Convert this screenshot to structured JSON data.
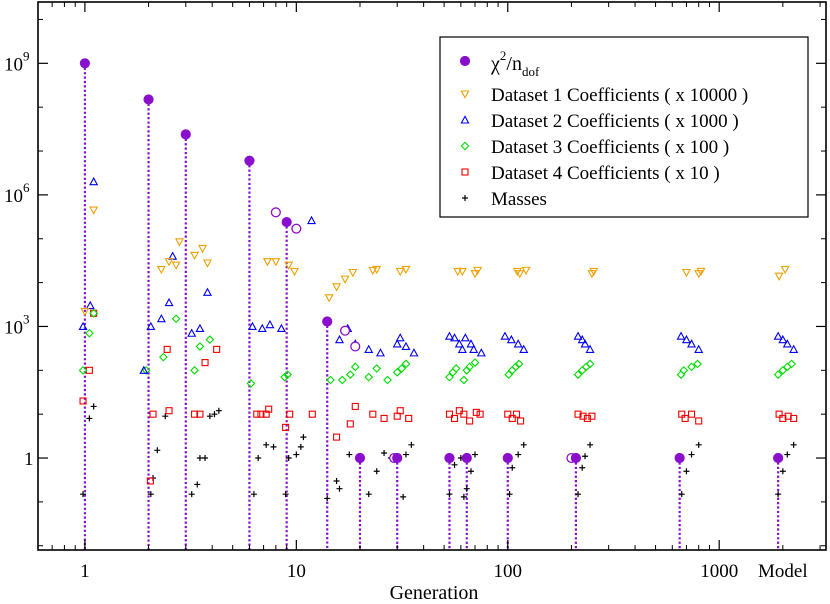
{
  "chart_data": {
    "type": "scatter",
    "title": "",
    "xlabel": "Generation",
    "ylabel": "",
    "x_scale": "log",
    "y_scale": "log",
    "xlim": [
      0.6,
      3200
    ],
    "ylim": [
      0.008,
      25000000000.0
    ],
    "x_ticks": [
      {
        "value": 1,
        "label": "1"
      },
      {
        "value": 10,
        "label": "10"
      },
      {
        "value": 100,
        "label": "100"
      },
      {
        "value": 1000,
        "label": "1000"
      },
      {
        "value": 2000,
        "label": "Model"
      }
    ],
    "y_ticks": [
      {
        "value": 1,
        "base": "1",
        "exp": ""
      },
      {
        "value": 1000,
        "base": "10",
        "exp": "3"
      },
      {
        "value": 1000000,
        "base": "10",
        "exp": "6"
      },
      {
        "value": 1000000000,
        "base": "10",
        "exp": "9"
      }
    ],
    "legend_position": "top-right",
    "legend": [
      {
        "key": "chi2",
        "label_main": "χ",
        "label_sup": "2",
        "label_mid": "/n",
        "label_sub": "dof"
      },
      {
        "key": "d1",
        "label": "Dataset 1 Coefficients ( x 10000 )"
      },
      {
        "key": "d2",
        "label": "Dataset 2 Coefficients ( x 1000 )"
      },
      {
        "key": "d3",
        "label": "Dataset 3 Coefficients ( x 100 )"
      },
      {
        "key": "d4",
        "label": "Dataset 4 Coefficients ( x 10 )"
      },
      {
        "key": "masses",
        "label": "Masses"
      }
    ],
    "colors": {
      "chi2": "#8a0fcc",
      "d1": "#f0a000",
      "d2": "#0000ee",
      "d3": "#00dd00",
      "d4": "#ee0000",
      "masses": "#000000",
      "drop_line": "#8a0fcc"
    },
    "generations": [
      1,
      2,
      3,
      6,
      9,
      14,
      20,
      30,
      53,
      64,
      100,
      210,
      650,
      1900
    ],
    "series": [
      {
        "name": "chi2_per_ndof",
        "key": "chi2",
        "marker": "filled-circle",
        "points": [
          [
            1,
            1000000000.0
          ],
          [
            2,
            150000000.0
          ],
          [
            3,
            24000000.0
          ],
          [
            6,
            6000000.0
          ],
          [
            9,
            240000.0
          ],
          [
            14,
            1300
          ],
          [
            20,
            1
          ],
          [
            30,
            1
          ],
          [
            53,
            1
          ],
          [
            64,
            1
          ],
          [
            100,
            1
          ],
          [
            210,
            1
          ],
          [
            650,
            1
          ],
          [
            1900,
            1
          ]
        ]
      },
      {
        "name": "chi2_per_ndof_open",
        "key": "chi2",
        "marker": "open-circle",
        "points": [
          [
            8,
            400000.0
          ],
          [
            10,
            170000.0
          ],
          [
            17,
            800
          ],
          [
            19,
            350
          ],
          [
            29,
            1
          ],
          [
            200,
            1
          ]
        ]
      },
      {
        "name": "dataset1_x10000",
        "key": "d1",
        "marker": "triangle-down",
        "points": [
          [
            1,
            2200
          ],
          [
            1.1,
            450000.0
          ],
          [
            2.3,
            20000
          ],
          [
            2.5,
            30000
          ],
          [
            2.7,
            25000
          ],
          [
            2.8,
            85000
          ],
          [
            3.3,
            42000
          ],
          [
            3.6,
            60000
          ],
          [
            3.8,
            28000
          ],
          [
            7.3,
            30000
          ],
          [
            8,
            30000
          ],
          [
            9.2,
            25000
          ],
          [
            9.8,
            18000
          ],
          [
            14.3,
            4500
          ],
          [
            15.5,
            8000
          ],
          [
            17,
            12000
          ],
          [
            18.5,
            17000
          ],
          [
            23,
            19000
          ],
          [
            24,
            20000
          ],
          [
            31,
            18000
          ],
          [
            33,
            20000
          ],
          [
            58,
            18000
          ],
          [
            61,
            18000
          ],
          [
            70,
            16000
          ],
          [
            72,
            19000
          ],
          [
            111,
            18000
          ],
          [
            114,
            16000
          ],
          [
            122,
            19000
          ],
          [
            250,
            16000
          ],
          [
            255,
            18000
          ],
          [
            700,
            17000
          ],
          [
            800,
            16000
          ],
          [
            820,
            18000
          ],
          [
            1920,
            14000
          ],
          [
            2050,
            20000
          ]
        ]
      },
      {
        "name": "dataset2_x1000",
        "key": "d2",
        "marker": "triangle-up",
        "points": [
          [
            0.98,
            1000
          ],
          [
            1.06,
            3000
          ],
          [
            1.1,
            2000000.0
          ],
          [
            1.9,
            100
          ],
          [
            2.05,
            1000
          ],
          [
            2.3,
            1500
          ],
          [
            2.5,
            3500
          ],
          [
            2.6,
            40000
          ],
          [
            3.2,
            700
          ],
          [
            3.5,
            900
          ],
          [
            3.8,
            6000
          ],
          [
            6.2,
            1000
          ],
          [
            6.9,
            900
          ],
          [
            7.5,
            1100
          ],
          [
            8.5,
            900
          ],
          [
            11.8,
            260000.0
          ],
          [
            16,
            500
          ],
          [
            17.5,
            900
          ],
          [
            19,
            400
          ],
          [
            22,
            300
          ],
          [
            25,
            250
          ],
          [
            30,
            400
          ],
          [
            31,
            550
          ],
          [
            33,
            350
          ],
          [
            36,
            250
          ],
          [
            53,
            600
          ],
          [
            56,
            550
          ],
          [
            59,
            400
          ],
          [
            61,
            300
          ],
          [
            63,
            550
          ],
          [
            67,
            400
          ],
          [
            69,
            300
          ],
          [
            75,
            250
          ],
          [
            97,
            600
          ],
          [
            104,
            500
          ],
          [
            112,
            400
          ],
          [
            119,
            300
          ],
          [
            215,
            600
          ],
          [
            225,
            500
          ],
          [
            232,
            400
          ],
          [
            245,
            300
          ],
          [
            660,
            600
          ],
          [
            700,
            500
          ],
          [
            740,
            400
          ],
          [
            800,
            300
          ],
          [
            1900,
            600
          ],
          [
            2000,
            500
          ],
          [
            2100,
            400
          ],
          [
            2250,
            300
          ]
        ]
      },
      {
        "name": "dataset3_x100",
        "key": "d3",
        "marker": "diamond",
        "points": [
          [
            0.98,
            100
          ],
          [
            1.05,
            700
          ],
          [
            1.1,
            2000
          ],
          [
            1.95,
            100
          ],
          [
            2.35,
            200
          ],
          [
            2.7,
            1500
          ],
          [
            3.3,
            100
          ],
          [
            3.5,
            350
          ],
          [
            3.9,
            500
          ],
          [
            6.1,
            50
          ],
          [
            8.8,
            70
          ],
          [
            9.1,
            80
          ],
          [
            14.5,
            60
          ],
          [
            16.5,
            60
          ],
          [
            18,
            80
          ],
          [
            19,
            120
          ],
          [
            22,
            70
          ],
          [
            24,
            110
          ],
          [
            27,
            60
          ],
          [
            30,
            90
          ],
          [
            31.5,
            110
          ],
          [
            33,
            140
          ],
          [
            53,
            70
          ],
          [
            55,
            90
          ],
          [
            57,
            110
          ],
          [
            62,
            60
          ],
          [
            64,
            100
          ],
          [
            66,
            120
          ],
          [
            70,
            150
          ],
          [
            101,
            80
          ],
          [
            105,
            100
          ],
          [
            109,
            120
          ],
          [
            113,
            140
          ],
          [
            215,
            80
          ],
          [
            225,
            100
          ],
          [
            235,
            120
          ],
          [
            245,
            140
          ],
          [
            660,
            80
          ],
          [
            680,
            100
          ],
          [
            740,
            120
          ],
          [
            790,
            140
          ],
          [
            1900,
            80
          ],
          [
            2000,
            100
          ],
          [
            2100,
            120
          ],
          [
            2200,
            140
          ]
        ]
      },
      {
        "name": "dataset4_x10",
        "key": "d4",
        "marker": "square",
        "points": [
          [
            0.98,
            20
          ],
          [
            1.05,
            100
          ],
          [
            1.1,
            2000
          ],
          [
            2.04,
            0.3
          ],
          [
            2.1,
            10
          ],
          [
            2.5,
            12
          ],
          [
            2.45,
            300
          ],
          [
            3.3,
            10
          ],
          [
            3.5,
            10
          ],
          [
            3.7,
            150
          ],
          [
            4.2,
            300
          ],
          [
            6.5,
            10
          ],
          [
            6.8,
            10
          ],
          [
            7.2,
            10
          ],
          [
            7.4,
            13
          ],
          [
            8.9,
            5
          ],
          [
            9.3,
            10
          ],
          [
            11.9,
            10
          ],
          [
            15.5,
            3
          ],
          [
            18,
            6
          ],
          [
            19,
            15
          ],
          [
            23,
            10
          ],
          [
            26,
            8
          ],
          [
            30,
            9
          ],
          [
            31,
            12
          ],
          [
            34,
            8
          ],
          [
            53,
            10
          ],
          [
            56,
            8
          ],
          [
            59,
            12
          ],
          [
            62,
            10
          ],
          [
            66,
            7
          ],
          [
            71,
            11
          ],
          [
            74,
            10
          ],
          [
            100,
            10
          ],
          [
            105,
            8
          ],
          [
            110,
            10
          ],
          [
            115,
            7
          ],
          [
            215,
            10
          ],
          [
            227,
            9
          ],
          [
            238,
            8
          ],
          [
            250,
            9
          ],
          [
            665,
            10
          ],
          [
            690,
            8
          ],
          [
            740,
            10
          ],
          [
            800,
            7
          ],
          [
            1920,
            10
          ],
          [
            2000,
            8
          ],
          [
            2120,
            9
          ],
          [
            2250,
            8
          ]
        ]
      },
      {
        "name": "masses",
        "key": "masses",
        "marker": "plus",
        "points": [
          [
            0.98,
            0.15
          ],
          [
            1.05,
            8
          ],
          [
            1.1,
            15
          ],
          [
            2.05,
            0.15
          ],
          [
            2.1,
            0.35
          ],
          [
            2.2,
            1.5
          ],
          [
            2.4,
            9
          ],
          [
            3.2,
            0.15
          ],
          [
            3.4,
            0.25
          ],
          [
            3.5,
            1
          ],
          [
            3.7,
            1
          ],
          [
            3.9,
            9
          ],
          [
            4.1,
            10
          ],
          [
            4.3,
            12
          ],
          [
            6.3,
            0.15
          ],
          [
            6.6,
            1
          ],
          [
            7.2,
            2
          ],
          [
            7.8,
            1.8
          ],
          [
            8.9,
            0.15
          ],
          [
            9.2,
            1
          ],
          [
            10,
            1.2
          ],
          [
            10.5,
            1.8
          ],
          [
            10.8,
            3
          ],
          [
            14,
            0.12
          ],
          [
            15.5,
            0.3
          ],
          [
            16,
            0.2
          ],
          [
            17.8,
            1.2
          ],
          [
            22,
            0.15
          ],
          [
            24,
            0.5
          ],
          [
            26,
            1.3
          ],
          [
            28,
            1
          ],
          [
            32,
            0.13
          ],
          [
            33,
            1.2
          ],
          [
            35,
            2
          ],
          [
            53,
            0.15
          ],
          [
            56,
            0.7
          ],
          [
            60,
            1
          ],
          [
            62,
            0.13
          ],
          [
            64,
            0.2
          ],
          [
            67,
            0.5
          ],
          [
            70,
            1.2
          ],
          [
            102,
            0.15
          ],
          [
            105,
            0.6
          ],
          [
            112,
            1.2
          ],
          [
            119,
            2
          ],
          [
            215,
            0.15
          ],
          [
            225,
            0.6
          ],
          [
            232,
            1.1
          ],
          [
            245,
            2
          ],
          [
            665,
            0.15
          ],
          [
            700,
            0.5
          ],
          [
            740,
            1.2
          ],
          [
            800,
            2
          ],
          [
            1900,
            0.15
          ],
          [
            2000,
            0.5
          ],
          [
            2100,
            1.2
          ],
          [
            2250,
            2
          ]
        ]
      }
    ]
  }
}
